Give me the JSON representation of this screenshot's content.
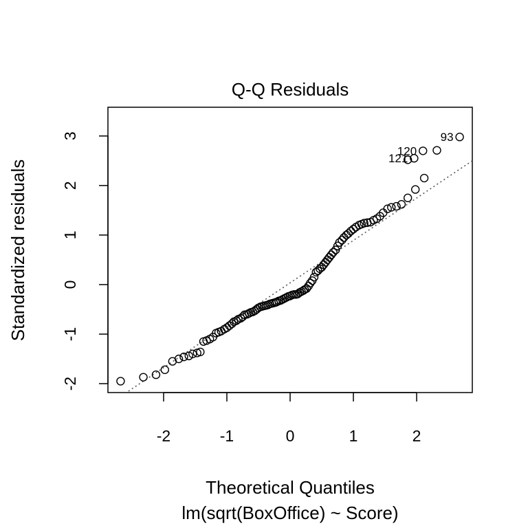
{
  "chart_data": {
    "type": "scatter",
    "title": "Q-Q Residuals",
    "xlabel": "Theoretical Quantiles",
    "subtitle": "lm(sqrt(BoxOffice) ~ Score)",
    "ylabel": "Standardized residuals",
    "xlim": [
      -2.88,
      2.88
    ],
    "ylim": [
      -2.18,
      3.58
    ],
    "xticks": [
      -2,
      -1,
      0,
      1,
      2
    ],
    "yticks": [
      -2,
      -1,
      0,
      1,
      2,
      3
    ],
    "grid": false,
    "reference_line": {
      "style": "dotted",
      "x": [
        -2.88,
        2.88
      ],
      "y": [
        -2.43,
        2.5
      ]
    },
    "labeled_points": [
      {
        "label": "93",
        "x": 2.68,
        "y": 2.98
      },
      {
        "label": "120",
        "x": 2.1,
        "y": 2.7
      },
      {
        "label": "121",
        "x": 1.96,
        "y": 2.55
      }
    ],
    "points": [
      [
        -2.68,
        -1.95
      ],
      [
        -2.32,
        -1.87
      ],
      [
        -2.12,
        -1.82
      ],
      [
        -1.98,
        -1.72
      ],
      [
        -1.86,
        -1.55
      ],
      [
        -1.76,
        -1.5
      ],
      [
        -1.68,
        -1.46
      ],
      [
        -1.6,
        -1.44
      ],
      [
        -1.54,
        -1.4
      ],
      [
        -1.47,
        -1.38
      ],
      [
        -1.42,
        -1.36
      ],
      [
        -1.37,
        -1.15
      ],
      [
        -1.32,
        -1.13
      ],
      [
        -1.27,
        -1.1
      ],
      [
        -1.22,
        -1.06
      ],
      [
        -1.17,
        -0.98
      ],
      [
        -1.13,
        -0.96
      ],
      [
        -1.09,
        -0.94
      ],
      [
        -1.04,
        -0.9
      ],
      [
        -1.0,
        -0.87
      ],
      [
        -0.96,
        -0.83
      ],
      [
        -0.92,
        -0.79
      ],
      [
        -0.89,
        -0.75
      ],
      [
        -0.85,
        -0.73
      ],
      [
        -0.82,
        -0.7
      ],
      [
        -0.78,
        -0.68
      ],
      [
        -0.75,
        -0.65
      ],
      [
        -0.72,
        -0.61
      ],
      [
        -0.68,
        -0.6
      ],
      [
        -0.65,
        -0.58
      ],
      [
        -0.62,
        -0.56
      ],
      [
        -0.59,
        -0.55
      ],
      [
        -0.56,
        -0.53
      ],
      [
        -0.53,
        -0.5
      ],
      [
        -0.5,
        -0.47
      ],
      [
        -0.47,
        -0.45
      ],
      [
        -0.44,
        -0.44
      ],
      [
        -0.41,
        -0.43
      ],
      [
        -0.38,
        -0.42
      ],
      [
        -0.35,
        -0.41
      ],
      [
        -0.32,
        -0.39
      ],
      [
        -0.29,
        -0.38
      ],
      [
        -0.26,
        -0.37
      ],
      [
        -0.23,
        -0.36
      ],
      [
        -0.21,
        -0.35
      ],
      [
        -0.18,
        -0.33
      ],
      [
        -0.15,
        -0.32
      ],
      [
        -0.12,
        -0.3
      ],
      [
        -0.09,
        -0.28
      ],
      [
        -0.06,
        -0.26
      ],
      [
        -0.03,
        -0.24
      ],
      [
        0.0,
        -0.23
      ],
      [
        0.03,
        -0.21
      ],
      [
        0.06,
        -0.2
      ],
      [
        0.09,
        -0.2
      ],
      [
        0.12,
        -0.19
      ],
      [
        0.15,
        -0.16
      ],
      [
        0.18,
        -0.14
      ],
      [
        0.21,
        -0.12
      ],
      [
        0.23,
        -0.1
      ],
      [
        0.26,
        -0.08
      ],
      [
        0.29,
        -0.03
      ],
      [
        0.32,
        0.03
      ],
      [
        0.35,
        0.08
      ],
      [
        0.38,
        0.15
      ],
      [
        0.41,
        0.25
      ],
      [
        0.44,
        0.28
      ],
      [
        0.47,
        0.32
      ],
      [
        0.5,
        0.35
      ],
      [
        0.53,
        0.4
      ],
      [
        0.56,
        0.45
      ],
      [
        0.59,
        0.5
      ],
      [
        0.62,
        0.55
      ],
      [
        0.65,
        0.6
      ],
      [
        0.68,
        0.65
      ],
      [
        0.72,
        0.7
      ],
      [
        0.75,
        0.78
      ],
      [
        0.78,
        0.85
      ],
      [
        0.82,
        0.9
      ],
      [
        0.85,
        0.95
      ],
      [
        0.89,
        1.0
      ],
      [
        0.92,
        1.03
      ],
      [
        0.96,
        1.08
      ],
      [
        1.0,
        1.12
      ],
      [
        1.04,
        1.16
      ],
      [
        1.09,
        1.2
      ],
      [
        1.13,
        1.22
      ],
      [
        1.17,
        1.24
      ],
      [
        1.22,
        1.25
      ],
      [
        1.27,
        1.26
      ],
      [
        1.32,
        1.3
      ],
      [
        1.37,
        1.33
      ],
      [
        1.42,
        1.38
      ],
      [
        1.47,
        1.45
      ],
      [
        1.54,
        1.53
      ],
      [
        1.6,
        1.56
      ],
      [
        1.68,
        1.58
      ],
      [
        1.76,
        1.62
      ],
      [
        1.86,
        1.75
      ],
      [
        1.98,
        1.92
      ],
      [
        2.12,
        2.15
      ],
      [
        1.86,
        2.52
      ],
      [
        1.96,
        2.55
      ],
      [
        2.1,
        2.7
      ],
      [
        2.32,
        2.71
      ],
      [
        2.68,
        2.98
      ]
    ]
  }
}
